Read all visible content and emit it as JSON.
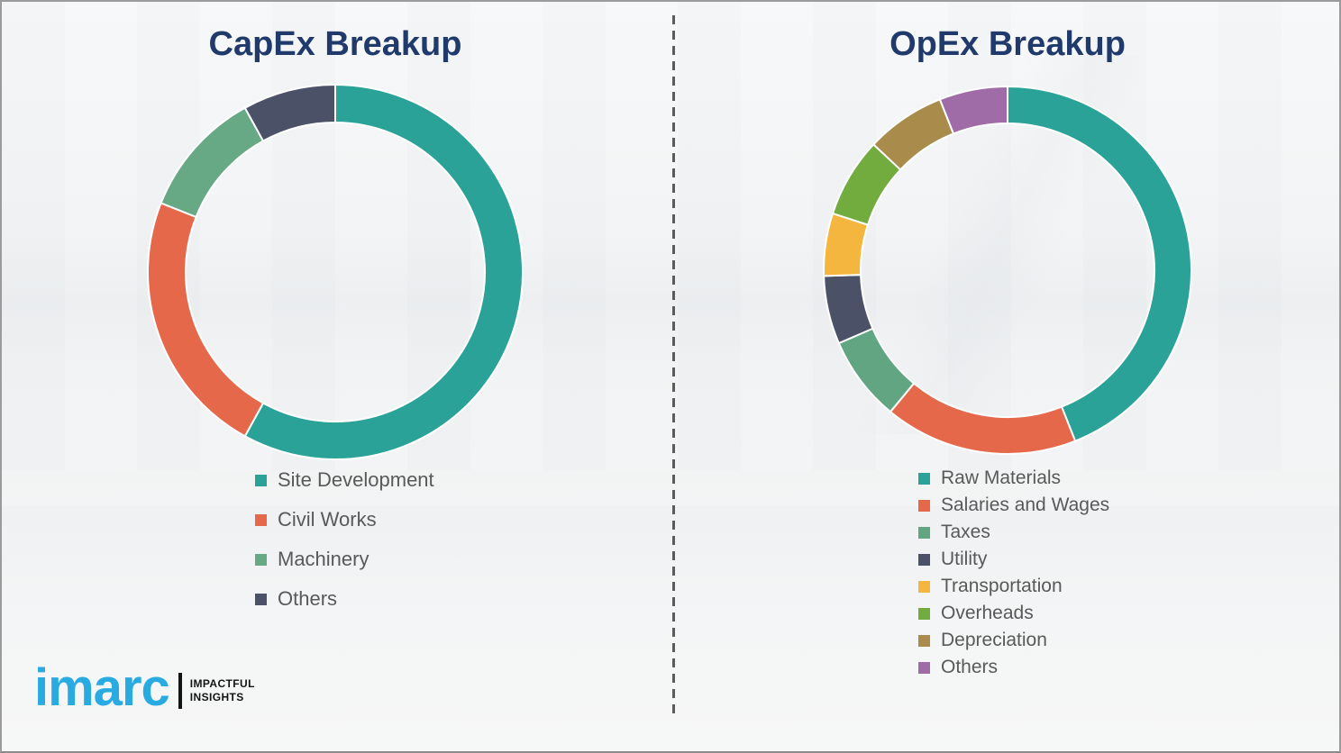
{
  "chart_data": [
    {
      "type": "pie",
      "subtype": "donut",
      "title": "CapEx Breakup",
      "labels": [
        "Site Development",
        "Civil Works",
        "Machinery",
        "Others"
      ],
      "values": [
        58,
        23,
        11,
        8
      ],
      "unit": "percent-estimated-from-arc",
      "colors": [
        "#2aa298",
        "#e6684a",
        "#68a985",
        "#4b5268"
      ],
      "start_angle_deg": 0,
      "direction": "clockwise",
      "legend_position": "below-left",
      "data_labels_shown": false
    },
    {
      "type": "pie",
      "subtype": "donut",
      "title": "OpEx Breakup",
      "labels": [
        "Raw Materials",
        "Salaries and Wages",
        "Taxes",
        "Utility",
        "Transportation",
        "Overheads",
        "Depreciation",
        "Others"
      ],
      "values": [
        44,
        17,
        7.5,
        6,
        5.5,
        7,
        7,
        6
      ],
      "unit": "percent-estimated-from-arc",
      "colors": [
        "#2aa298",
        "#e6684a",
        "#62a583",
        "#4b5268",
        "#f5b63f",
        "#72ac3f",
        "#a98c4b",
        "#a06ca8"
      ],
      "start_angle_deg": 0,
      "direction": "clockwise",
      "legend_position": "below-left",
      "data_labels_shown": false
    }
  ],
  "logo": {
    "brand": "imarc",
    "tagline_line1": "IMPACTFUL",
    "tagline_line2": "INSIGHTS",
    "brand_color": "#29abe2",
    "tagline_color": "#141414"
  },
  "style_colors": {
    "title_text": "#1f3a6b",
    "legend_text": "#595959",
    "background": "#f3f4f5",
    "divider": "#5b5b5b",
    "segment_separator": "#ffffff"
  }
}
